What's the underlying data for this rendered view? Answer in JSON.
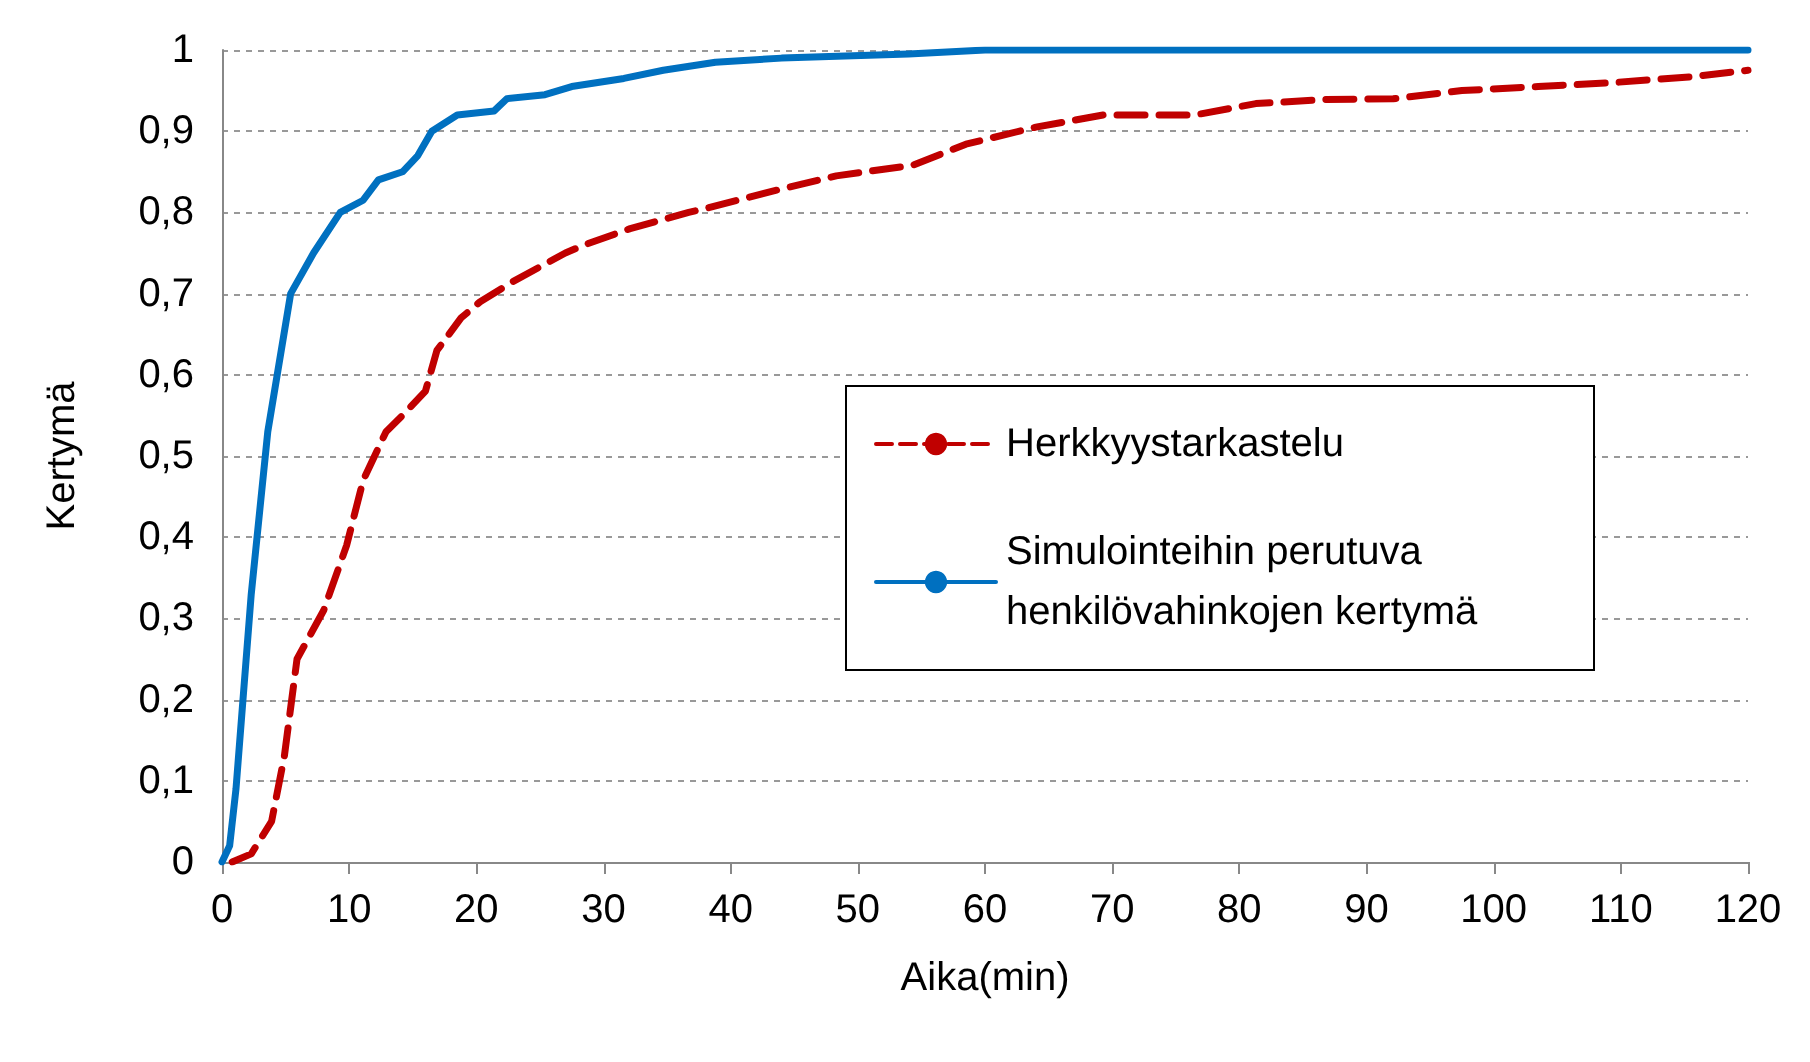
{
  "chart_data": {
    "type": "line",
    "xlabel": "Aika(min)",
    "ylabel": "Kertymä",
    "xlim": [
      0,
      120
    ],
    "xticks": [
      0,
      10,
      20,
      30,
      40,
      50,
      60,
      70,
      80,
      90,
      100,
      110,
      120
    ],
    "ylim": [
      0,
      1
    ],
    "yticks": [
      0,
      {
        "value": 0.1,
        "label": "0,1"
      },
      {
        "value": 0.2,
        "label": "0,2"
      },
      {
        "value": 0.3,
        "label": "0,3"
      },
      {
        "value": 0.4,
        "label": "0,4"
      },
      {
        "value": 0.5,
        "label": "0,5"
      },
      {
        "value": 0.6,
        "label": "0,6"
      },
      {
        "value": 0.7,
        "label": "0,7"
      },
      {
        "value": 0.8,
        "label": "0,8"
      },
      {
        "value": 0.9,
        "label": "0,9"
      },
      1
    ],
    "grid": "y",
    "legend": "right",
    "marker": "none",
    "series": [
      {
        "name": "Herkkyystarkastelu",
        "color": "#c00000",
        "line_style": "dashed",
        "x": [
          0.8,
          2.3,
          3.9,
          4.9,
          5.9,
          8,
          9.8,
          11.1,
          12.9,
          14.2,
          16,
          16.9,
          18.8,
          20.3,
          22.9,
          27,
          28.5,
          32.1,
          36.7,
          38.1,
          43,
          48.3,
          54.3,
          58.5,
          64,
          69.3,
          76.5,
          81.3,
          86.7,
          92.1,
          97.5,
          103.5,
          109.5,
          115.5,
          120
        ],
        "values": [
          0,
          0.01,
          0.05,
          0.13,
          0.25,
          0.31,
          0.39,
          0.47,
          0.53,
          0.55,
          0.58,
          0.63,
          0.67,
          0.69,
          0.715,
          0.75,
          0.76,
          0.78,
          0.8,
          0.805,
          0.825,
          0.845,
          0.858,
          0.884,
          0.905,
          0.92,
          0.92,
          0.934,
          0.939,
          0.94,
          0.95,
          0.955,
          0.96,
          0.967,
          0.975
        ]
      },
      {
        "name": "Simulointeihin perutuva henkilövahinkojen kertymä",
        "color": "#0070c0",
        "line_style": "solid",
        "x": [
          0,
          0.6,
          1.1,
          2.3,
          3.6,
          5.4,
          7.2,
          9.3,
          11.1,
          12.3,
          14.2,
          15.4,
          16.5,
          18.5,
          21.4,
          22.4,
          25.4,
          27.5,
          31.6,
          34.7,
          38.8,
          44,
          54,
          60,
          120
        ],
        "values": [
          0,
          0.02,
          0.09,
          0.33,
          0.53,
          0.7,
          0.75,
          0.8,
          0.815,
          0.84,
          0.85,
          0.87,
          0.9,
          0.92,
          0.925,
          0.94,
          0.945,
          0.955,
          0.965,
          0.975,
          0.985,
          0.99,
          0.995,
          1,
          1
        ]
      }
    ]
  }
}
